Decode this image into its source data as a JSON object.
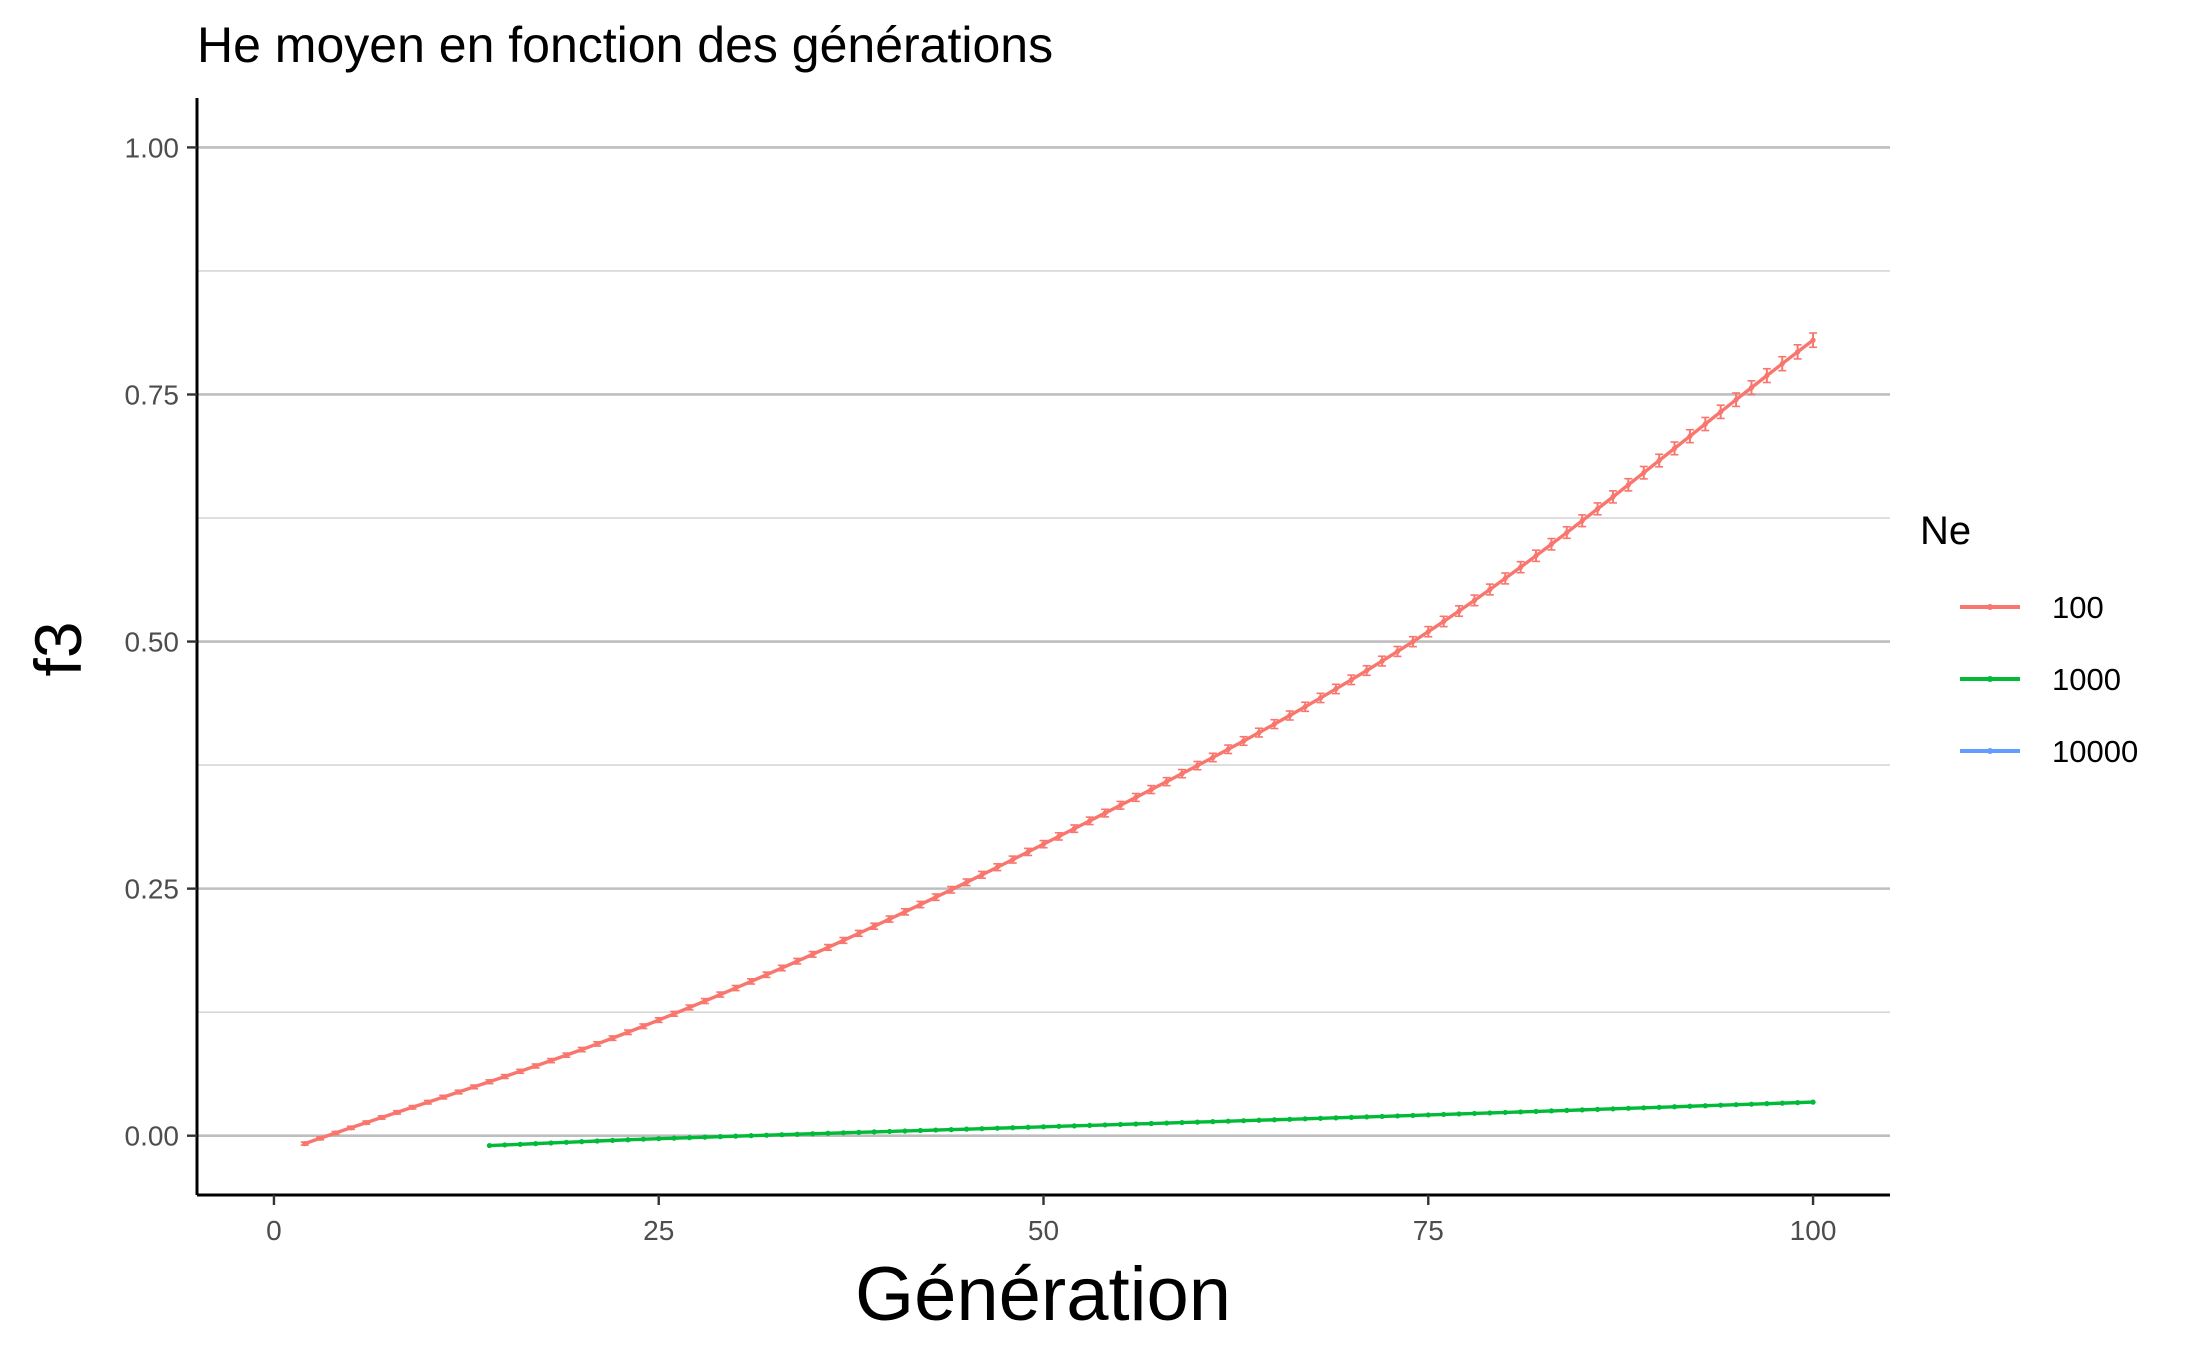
{
  "chart_data": {
    "type": "line",
    "title": "He moyen en fonction des générations",
    "xlabel": "Génération",
    "ylabel": "f3",
    "xlim": [
      -5,
      105
    ],
    "ylim": [
      -0.06,
      1.05
    ],
    "x_ticks": [
      0,
      25,
      50,
      75,
      100
    ],
    "x_tick_labels": [
      "0",
      "25",
      "50",
      "75",
      "100"
    ],
    "y_ticks": [
      0,
      0.25,
      0.5,
      0.75,
      1
    ],
    "y_tick_labels": [
      "0.00",
      "0.25",
      "0.50",
      "0.75",
      "1.00"
    ],
    "y_minor_ticks": [
      0.125,
      0.375,
      0.625,
      0.875
    ],
    "grid": "horizontal",
    "legend": {
      "title": "Ne",
      "position": "right",
      "entries": [
        "100",
        "1000",
        "10000"
      ]
    },
    "series": [
      {
        "name": "100",
        "color": "#F8766D",
        "x_start": 2,
        "x_end": 100,
        "step": 1,
        "anchors": [
          [
            2,
            -0.008
          ],
          [
            25,
            0.117
          ],
          [
            50,
            0.295
          ],
          [
            75,
            0.51
          ],
          [
            100,
            0.805
          ]
        ],
        "error_bars": true
      },
      {
        "name": "1000",
        "color": "#00BA38",
        "x_start": 14,
        "x_end": 100,
        "step": 1,
        "anchors": [
          [
            14,
            -0.01
          ],
          [
            25,
            -0.003
          ],
          [
            50,
            0.009
          ],
          [
            75,
            0.021
          ],
          [
            100,
            0.034
          ]
        ],
        "error_bars": false
      },
      {
        "name": "10000",
        "color": "#619CFF",
        "x_start": null,
        "x_end": null,
        "step": 1,
        "anchors": [],
        "error_bars": false
      }
    ]
  }
}
